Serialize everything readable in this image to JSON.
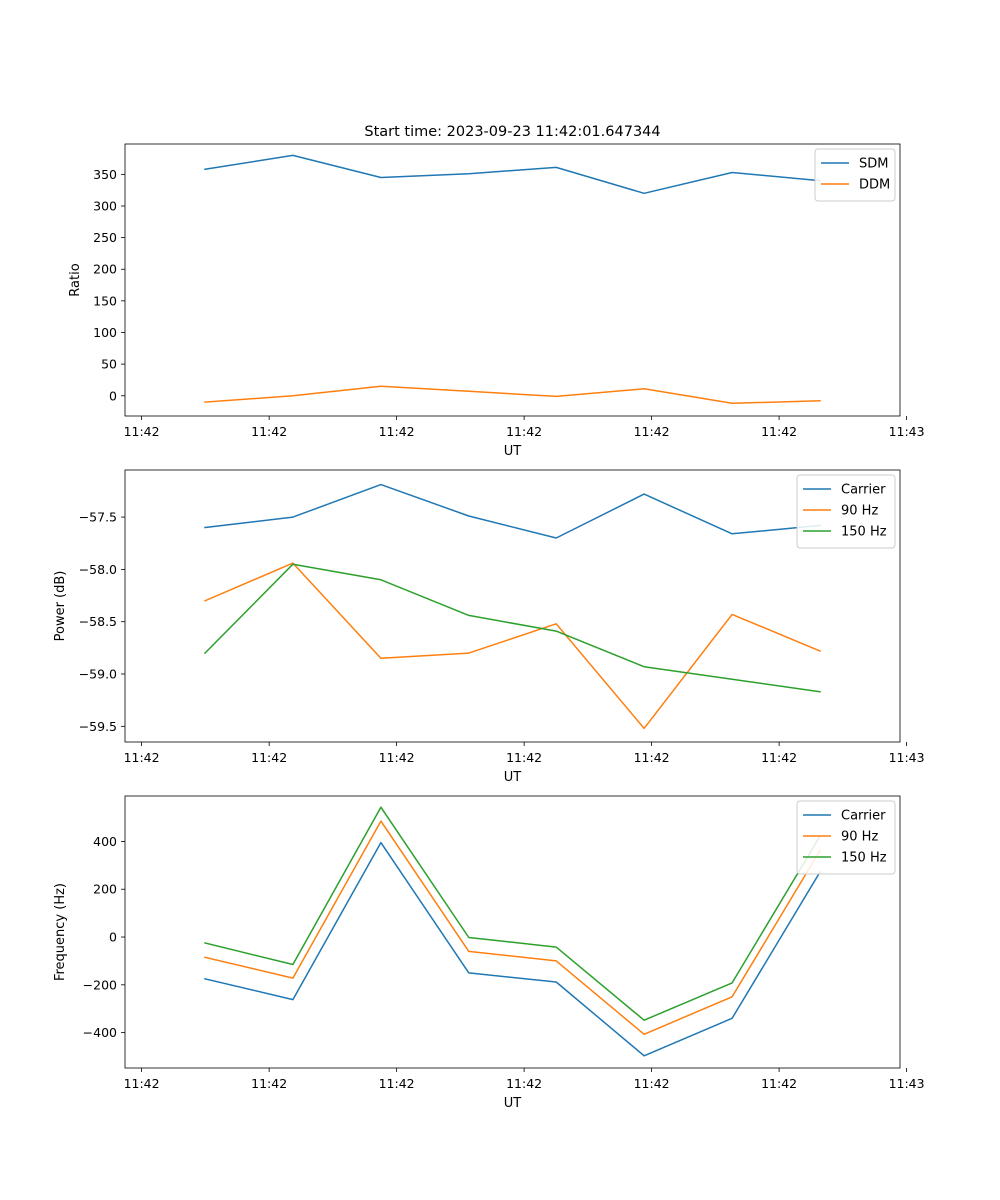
{
  "chart_data": [
    {
      "type": "line",
      "title": "Start time: 2023-09-23 11:42:01.647344",
      "xlabel": "UT",
      "ylabel": "Ratio",
      "x_tick_labels": [
        "11:42",
        "11:42",
        "11:42",
        "11:42",
        "11:42",
        "11:42",
        "11:43"
      ],
      "y_ticks": [
        0,
        50,
        100,
        150,
        200,
        250,
        300,
        350
      ],
      "ylim": [
        -32,
        398
      ],
      "xlim": [
        -0.13,
        1.13
      ],
      "x": [
        0,
        0.143,
        0.286,
        0.429,
        0.571,
        0.714,
        0.857,
        1.0
      ],
      "legend_position": "upper right",
      "series": [
        {
          "name": "SDM",
          "color": "#1f77b4",
          "values": [
            358,
            380,
            345,
            351,
            361,
            320,
            353,
            340
          ]
        },
        {
          "name": "DDM",
          "color": "#ff7f0e",
          "values": [
            -10,
            0,
            15,
            7,
            -1,
            11,
            -12,
            -8
          ]
        }
      ]
    },
    {
      "type": "line",
      "title": "",
      "xlabel": "UT",
      "ylabel": "Power (dB)",
      "x_tick_labels": [
        "11:42",
        "11:42",
        "11:42",
        "11:42",
        "11:42",
        "11:42",
        "11:43"
      ],
      "y_ticks": [
        -59.5,
        -59.0,
        -58.5,
        -58.0,
        -57.5
      ],
      "y_tick_labels": [
        "−59.5",
        "−59.0",
        "−58.5",
        "−58.0",
        "−57.5"
      ],
      "ylim": [
        -59.65,
        -57.05
      ],
      "xlim": [
        -0.13,
        1.13
      ],
      "x": [
        0,
        0.143,
        0.286,
        0.429,
        0.571,
        0.714,
        0.857,
        1.0
      ],
      "legend_position": "upper right",
      "series": [
        {
          "name": "Carrier",
          "color": "#1f77b4",
          "values": [
            -57.6,
            -57.5,
            -57.19,
            -57.49,
            -57.7,
            -57.28,
            -57.66,
            -57.58
          ]
        },
        {
          "name": "90 Hz",
          "color": "#ff7f0e",
          "values": [
            -58.3,
            -57.94,
            -58.85,
            -58.8,
            -58.52,
            -59.52,
            -58.43,
            -58.78
          ]
        },
        {
          "name": "150 Hz",
          "color": "#2ca02c",
          "values": [
            -58.8,
            -57.95,
            -58.1,
            -58.44,
            -58.59,
            -58.93,
            -59.05,
            -59.17
          ]
        }
      ]
    },
    {
      "type": "line",
      "title": "",
      "xlabel": "UT",
      "ylabel": "Frequency (Hz)",
      "x_tick_labels": [
        "11:42",
        "11:42",
        "11:42",
        "11:42",
        "11:42",
        "11:42",
        "11:43"
      ],
      "y_ticks": [
        -400,
        -200,
        0,
        200,
        400
      ],
      "y_tick_labels": [
        "−400",
        "−200",
        "0",
        "200",
        "400"
      ],
      "ylim": [
        -548,
        590
      ],
      "xlim": [
        -0.13,
        1.13
      ],
      "x": [
        0,
        0.143,
        0.286,
        0.429,
        0.571,
        0.714,
        0.857,
        1.0
      ],
      "legend_position": "upper right",
      "series": [
        {
          "name": "Carrier",
          "color": "#1f77b4",
          "values": [
            -175,
            -262,
            395,
            -150,
            -188,
            -497,
            -340,
            272
          ]
        },
        {
          "name": "90 Hz",
          "color": "#ff7f0e",
          "values": [
            -85,
            -172,
            485,
            -60,
            -100,
            -407,
            -250,
            362
          ]
        },
        {
          "name": "150 Hz",
          "color": "#2ca02c",
          "values": [
            -25,
            -115,
            543,
            -2,
            -42,
            -348,
            -192,
            422
          ]
        }
      ]
    }
  ]
}
